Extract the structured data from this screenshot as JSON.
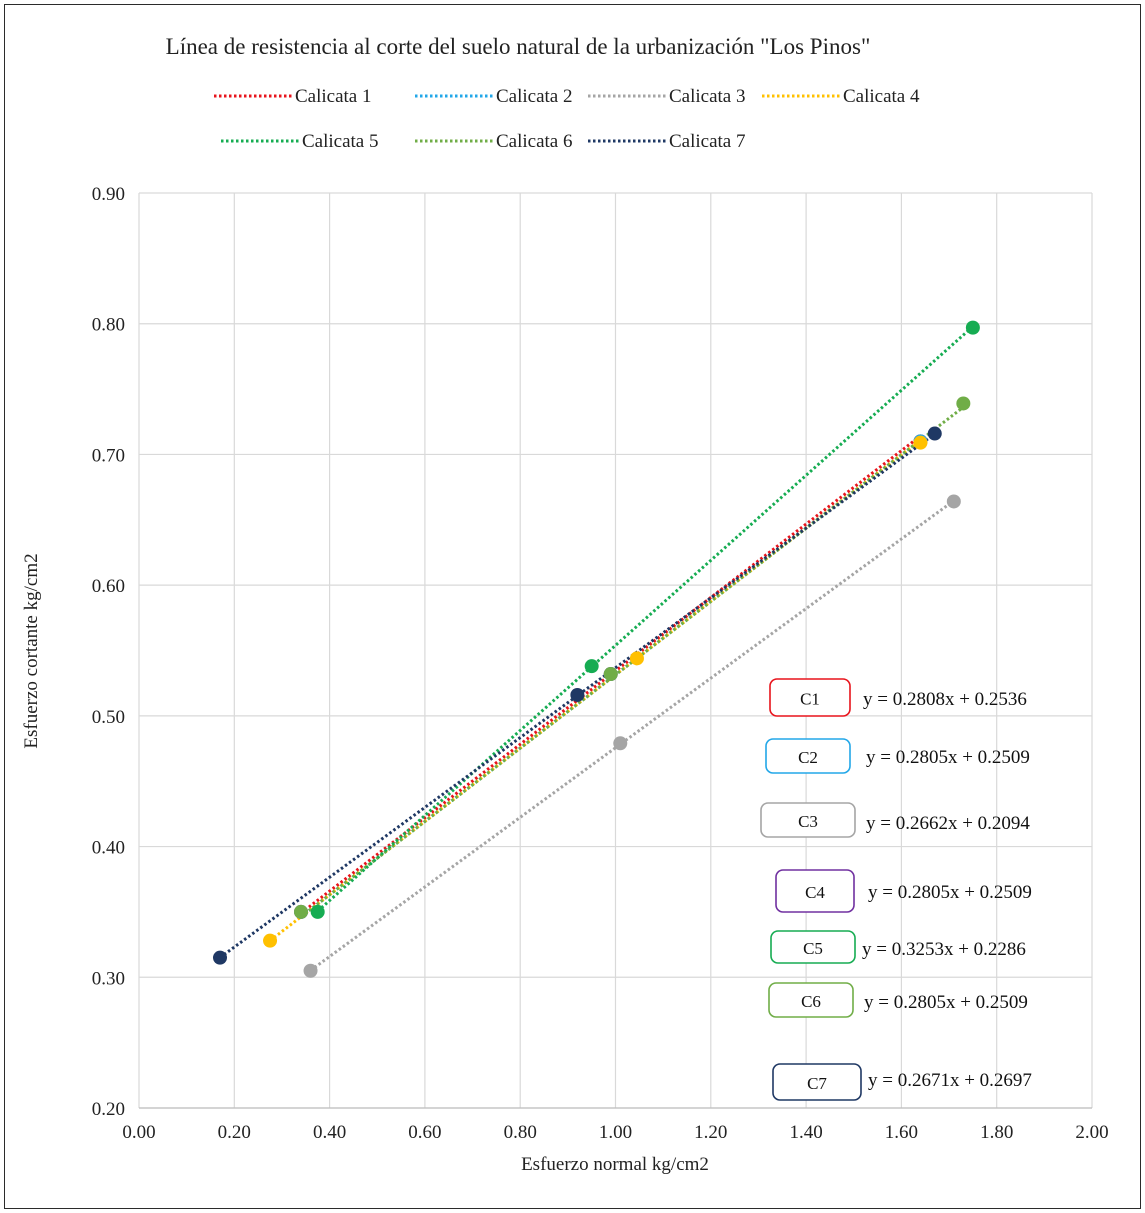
{
  "chart_data": {
    "type": "scatter",
    "title": "Línea de resistencia al corte del suelo natural de la urbanización \"Los Pinos\"",
    "xlabel": "Esfuerzo normal kg/cm2",
    "ylabel": "Esfuerzo cortante kg/cm2",
    "xlim": [
      0,
      2
    ],
    "ylim": [
      0.2,
      0.9
    ],
    "x_ticks": [
      "0.00",
      "0.20",
      "0.40",
      "0.60",
      "0.80",
      "1.00",
      "1.20",
      "1.40",
      "1.60",
      "1.80",
      "2.00"
    ],
    "y_ticks": [
      "0.20",
      "0.30",
      "0.40",
      "0.50",
      "0.60",
      "0.70",
      "0.80",
      "0.90"
    ],
    "grid": true,
    "legend_position": "top",
    "series": [
      {
        "name": "Calicata 1",
        "color": "#e8141c",
        "slope": 0.2808,
        "intercept": 0.2536,
        "x": [
          0.34,
          0.99,
          1.64
        ],
        "y": [
          0.35,
          0.532,
          0.71
        ],
        "box_label": "C1",
        "equation": "y = 0.2808x + 0.2536"
      },
      {
        "name": "Calicata 2",
        "color": "#22a7e8",
        "slope": 0.2805,
        "intercept": 0.2509,
        "x": [
          0.34,
          0.99,
          1.64
        ],
        "y": [
          0.35,
          0.532,
          0.71
        ],
        "box_label": "C2",
        "equation": "y = 0.2805x + 0.2509"
      },
      {
        "name": "Calicata 3",
        "color": "#a5a5a5",
        "slope": 0.2662,
        "intercept": 0.2094,
        "x": [
          0.36,
          1.01,
          1.71
        ],
        "y": [
          0.305,
          0.479,
          0.664
        ],
        "box_label": "C3",
        "equation": "y = 0.2662x + 0.2094"
      },
      {
        "name": "Calicata 4",
        "color": "#ffc000",
        "slope": 0.2805,
        "intercept": 0.2509,
        "x": [
          0.275,
          1.045,
          1.64
        ],
        "y": [
          0.328,
          0.544,
          0.709
        ],
        "box_label": "C4",
        "box_color": "#7030a0",
        "equation": "y = 0.2805x + 0.2509"
      },
      {
        "name": "Calicata 5",
        "color": "#16ac52",
        "slope": 0.3253,
        "intercept": 0.2286,
        "x": [
          0.375,
          0.95,
          1.75
        ],
        "y": [
          0.35,
          0.538,
          0.797
        ],
        "box_label": "C5",
        "equation": "y = 0.3253x + 0.2286"
      },
      {
        "name": "Calicata 6",
        "color": "#70ad47",
        "slope": 0.2805,
        "intercept": 0.2509,
        "x": [
          0.34,
          0.99,
          1.73
        ],
        "y": [
          0.35,
          0.532,
          0.739
        ],
        "box_label": "C6",
        "equation": "y = 0.2805x + 0.2509"
      },
      {
        "name": "Calicata 7",
        "color": "#1f3864",
        "slope": 0.2671,
        "intercept": 0.2697,
        "x": [
          0.17,
          0.92,
          1.67
        ],
        "y": [
          0.315,
          0.516,
          0.716
        ],
        "box_label": "C7",
        "equation": "y = 0.2671x + 0.2697"
      }
    ]
  }
}
